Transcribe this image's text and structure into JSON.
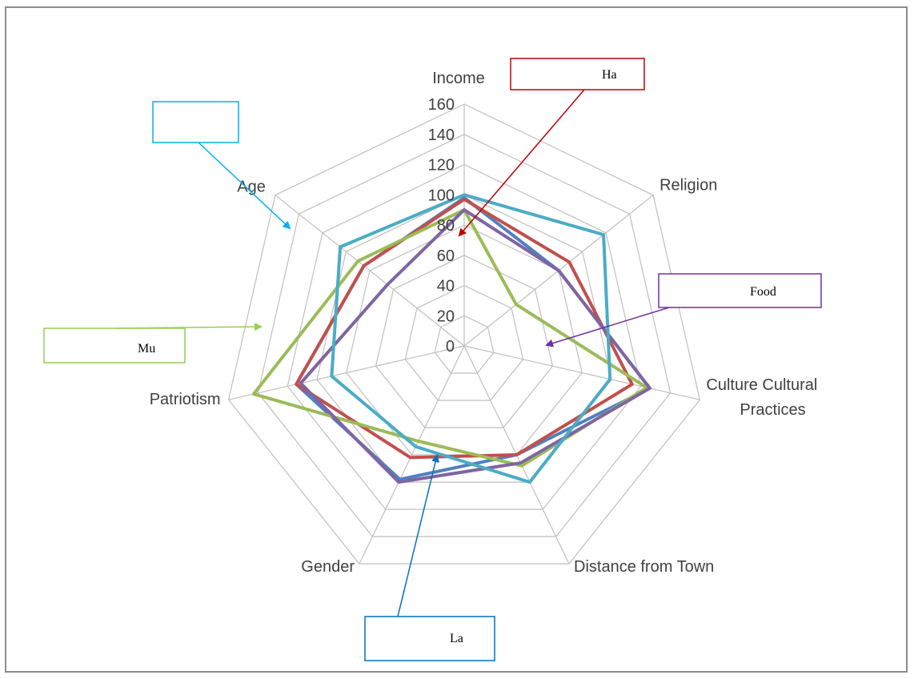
{
  "chart_data": {
    "type": "radar",
    "categories": [
      "Income",
      "Religion",
      "Culture Cultural Practices",
      "Distance from Town",
      "Gender",
      "Patriotism",
      "Age"
    ],
    "category_lines": [
      [
        "Income"
      ],
      [
        "Religion"
      ],
      [
        "Culture Cultural",
        "Practices"
      ],
      [
        "Distance from Town"
      ],
      [
        "Gender"
      ],
      [
        "Patriotism"
      ],
      [
        "Age"
      ]
    ],
    "rlim": [
      0,
      160
    ],
    "ticks": [
      0,
      20,
      40,
      60,
      80,
      100,
      120,
      140,
      160
    ],
    "tick_labels": [
      "0",
      "20",
      "40",
      "60",
      "80",
      "100",
      "120",
      "140",
      "160"
    ],
    "series": [
      {
        "color": "#4f81bd",
        "values": [
          98,
          80,
          126,
          80,
          98,
          114,
          85
        ]
      },
      {
        "color": "#c0504d",
        "values": [
          97,
          89,
          114,
          80,
          82,
          114,
          85
        ]
      },
      {
        "color": "#9bbb59",
        "values": [
          90,
          44,
          124,
          88,
          70,
          143,
          90
        ]
      },
      {
        "color": "#8064a2",
        "values": [
          90,
          80,
          126,
          86,
          100,
          111,
          65
        ]
      },
      {
        "color": "#4bacc6",
        "values": [
          100,
          118,
          99,
          100,
          74,
          90,
          105
        ]
      }
    ],
    "callouts": [
      {
        "text": "Ha",
        "color": "#c00000"
      },
      {
        "text": "",
        "color": "#00b0f0"
      },
      {
        "text": "Food",
        "color": "#7030a0"
      },
      {
        "text": "Mu",
        "color": "#92d050"
      },
      {
        "text": "La",
        "color": "#0070c0"
      }
    ]
  }
}
